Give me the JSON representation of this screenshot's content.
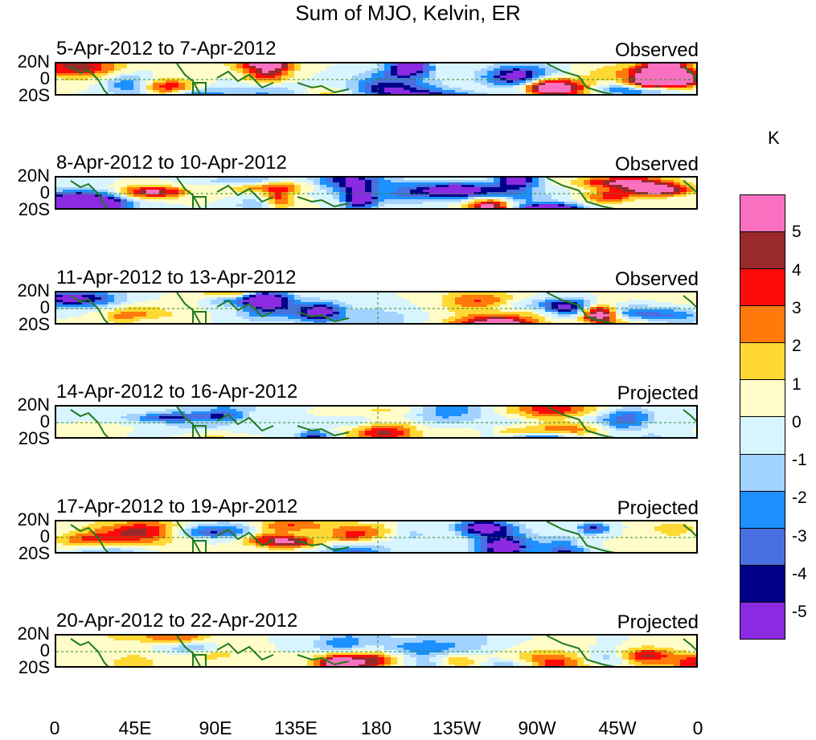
{
  "title": "Sum of MJO, Kelvin, ER",
  "chart_data": {
    "type": "heatmap",
    "title": "Sum of MJO, Kelvin, ER",
    "xlabel": "",
    "ylabel": "",
    "x_ticks": [
      "0",
      "45E",
      "90E",
      "135E",
      "180",
      "135W",
      "90W",
      "45W",
      "0"
    ],
    "y_ticks": [
      "20N",
      "0",
      "20S"
    ],
    "colorbar": {
      "unit": "K",
      "labels": [
        "5",
        "4",
        "3",
        "2",
        "1",
        "0",
        "-1",
        "-2",
        "-3",
        "-4",
        "-5"
      ],
      "colors": [
        "#f970c0",
        "#9a2a2a",
        "#ff0a0a",
        "#ff7a0a",
        "#ffd833",
        "#fffcc7",
        "#d8f4ff",
        "#a2d2ff",
        "#1e90ff",
        "#4a6fe0",
        "#00008b",
        "#8a2be2"
      ]
    },
    "panels": [
      {
        "date": "5-Apr-2012 to 7-Apr-2012",
        "status": "Observed"
      },
      {
        "date": "8-Apr-2012 to 10-Apr-2012",
        "status": "Observed"
      },
      {
        "date": "11-Apr-2012 to 13-Apr-2012",
        "status": "Observed"
      },
      {
        "date": "14-Apr-2012 to 16-Apr-2012",
        "status": "Projected"
      },
      {
        "date": "17-Apr-2012 to 19-Apr-2012",
        "status": "Projected"
      },
      {
        "date": "20-Apr-2012 to 22-Apr-2012",
        "status": "Projected"
      }
    ]
  }
}
